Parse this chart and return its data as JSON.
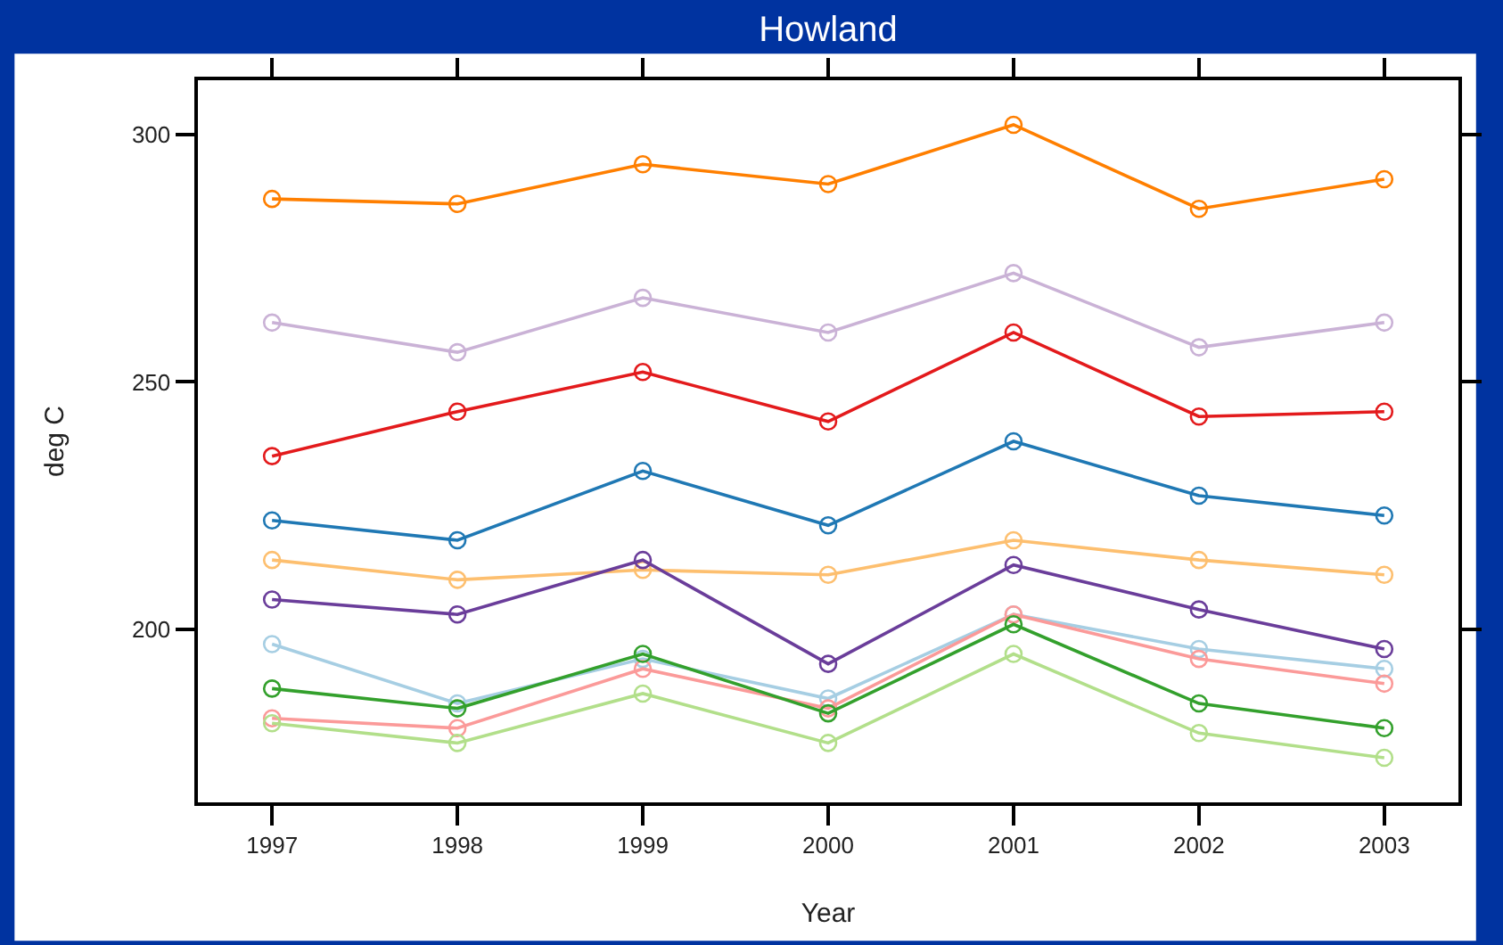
{
  "chart_data": {
    "type": "line",
    "title": "Howland",
    "xlabel": "Year",
    "ylabel": "deg C",
    "x": [
      1997,
      1998,
      1999,
      2000,
      2001,
      2002,
      2003
    ],
    "xlim": [
      1996.6,
      2003.4
    ],
    "xticks": [
      1997,
      1998,
      1999,
      2000,
      2001,
      2002,
      2003
    ],
    "ylim": [
      165,
      311
    ],
    "yticks": [
      200,
      250,
      300
    ],
    "marker": "circle",
    "line_style": "solid",
    "grid": false,
    "series": [
      {
        "color": "#ff7f00",
        "values": [
          287,
          286,
          294,
          290,
          302,
          285,
          291
        ]
      },
      {
        "color": "#cab2d6",
        "values": [
          262,
          256,
          267,
          260,
          272,
          257,
          262
        ]
      },
      {
        "color": "#e31a1c",
        "values": [
          235,
          244,
          252,
          242,
          260,
          243,
          244
        ]
      },
      {
        "color": "#1f78b4",
        "values": [
          222,
          218,
          232,
          221,
          238,
          227,
          223
        ]
      },
      {
        "color": "#fdbf6f",
        "values": [
          214,
          210,
          212,
          211,
          218,
          214,
          211
        ]
      },
      {
        "color": "#6a3d9a",
        "values": [
          206,
          203,
          214,
          193,
          213,
          204,
          196
        ]
      },
      {
        "color": "#a6cee3",
        "values": [
          197,
          185,
          194,
          186,
          203,
          196,
          192
        ]
      },
      {
        "color": "#fb9a99",
        "values": [
          182,
          180,
          192,
          184,
          203,
          194,
          189
        ]
      },
      {
        "color": "#33a02c",
        "values": [
          188,
          184,
          195,
          183,
          201,
          185,
          180
        ]
      },
      {
        "color": "#b2df8a",
        "values": [
          181,
          177,
          187,
          177,
          195,
          179,
          174
        ]
      }
    ]
  }
}
